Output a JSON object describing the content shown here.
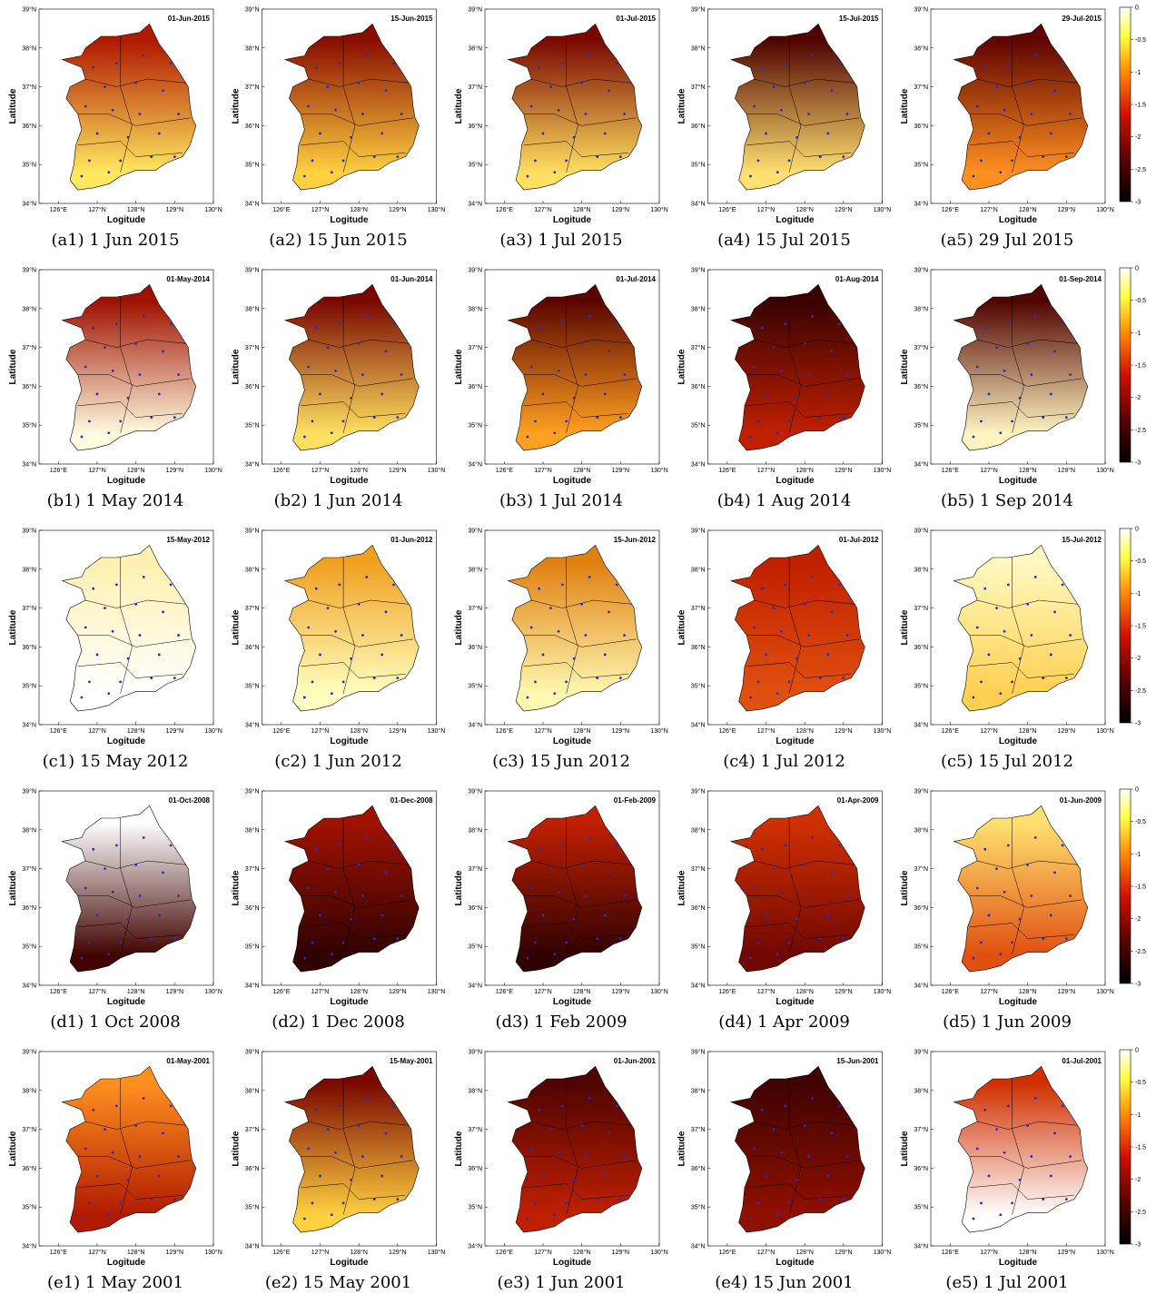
{
  "axes": {
    "ylabel": "Latitude",
    "xlabel": "Logitude",
    "yticks": [
      "39°N",
      "38°N",
      "37°N",
      "36°N",
      "35°N",
      "34°N"
    ],
    "xticks": [
      "126°E",
      "127°N",
      "128°N",
      "129°N",
      "130°N"
    ]
  },
  "colorbar": {
    "ticks": [
      0,
      -0.5,
      -1,
      -1.5,
      -2,
      -2.5,
      -3
    ]
  },
  "rows": [
    {
      "panels": [
        {
          "date": "01-Jun-2015",
          "caption": "(a1) 1 Jun 2015",
          "colors": [
            "#b01a00",
            "#ffe860"
          ]
        },
        {
          "date": "15-Jun-2015",
          "caption": "(a2) 15 Jun 2015",
          "colors": [
            "#8a0e00",
            "#ffd040"
          ]
        },
        {
          "date": "01-Jul-2015",
          "caption": "(a3) 1 Jul 2015",
          "colors": [
            "#7a0800",
            "#ffe060"
          ]
        },
        {
          "date": "15-Jul-2015",
          "caption": "(a4) 15 Jul 2015",
          "colors": [
            "#500400",
            "#ffe070"
          ]
        },
        {
          "date": "29-Jul-2015",
          "caption": "(a5) 29 Jul 2015",
          "colors": [
            "#600500",
            "#ff9020"
          ]
        }
      ]
    },
    {
      "panels": [
        {
          "date": "01-May-2014",
          "caption": "(b1) 1 May 2014",
          "colors": [
            "#a01200",
            "#fffbe0"
          ]
        },
        {
          "date": "01-Jun-2014",
          "caption": "(b2) 1 Jun 2014",
          "colors": [
            "#7a0800",
            "#ffe060"
          ]
        },
        {
          "date": "01-Jul-2014",
          "caption": "(b3) 1 Jul 2014",
          "colors": [
            "#5a0500",
            "#ffa020"
          ]
        },
        {
          "date": "01-Aug-2014",
          "caption": "(b4) 1 Aug 2014",
          "colors": [
            "#3a0200",
            "#c02000"
          ]
        },
        {
          "date": "01-Sep-2014",
          "caption": "(b5) 1 Sep 2014",
          "colors": [
            "#500400",
            "#fff4c0"
          ]
        }
      ]
    },
    {
      "panels": [
        {
          "date": "15-May-2012",
          "caption": "(c1) 15 May 2012",
          "colors": [
            "#fff0b0",
            "#ffffff"
          ]
        },
        {
          "date": "01-Jun-2012",
          "caption": "(c2) 1 Jun 2012",
          "colors": [
            "#f0a020",
            "#ffffc0"
          ]
        },
        {
          "date": "15-Jun-2012",
          "caption": "(c3) 15 Jun 2012",
          "colors": [
            "#e08010",
            "#fff8b0"
          ]
        },
        {
          "date": "01-Jul-2012",
          "caption": "(c4) 1 Jul 2012",
          "colors": [
            "#c02000",
            "#e05010"
          ]
        },
        {
          "date": "15-Jul-2012",
          "caption": "(c5) 15 Jul 2012",
          "colors": [
            "#fff8c0",
            "#ffd050"
          ]
        }
      ]
    },
    {
      "panels": [
        {
          "date": "01-Oct-2008",
          "caption": "(d1) 1 Oct 2008",
          "colors": [
            "#ffffff",
            "#400300"
          ]
        },
        {
          "date": "01-Dec-2008",
          "caption": "(d2) 1 Dec 2008",
          "colors": [
            "#a01200",
            "#300200"
          ]
        },
        {
          "date": "01-Feb-2009",
          "caption": "(d3) 1 Feb 2009",
          "colors": [
            "#c02000",
            "#300200"
          ]
        },
        {
          "date": "01-Apr-2009",
          "caption": "(d4) 1 Apr 2009",
          "colors": [
            "#d03000",
            "#700800"
          ]
        },
        {
          "date": "01-Jun-2009",
          "caption": "(d5) 1 Jun 2009",
          "colors": [
            "#ffe070",
            "#e05010"
          ]
        }
      ]
    },
    {
      "panels": [
        {
          "date": "01-May-2001",
          "caption": "(e1) 1 May 2001",
          "colors": [
            "#ff9020",
            "#b01a00"
          ]
        },
        {
          "date": "15-May-2001",
          "caption": "(e2) 15 May 2001",
          "colors": [
            "#7a0800",
            "#ffd040"
          ]
        },
        {
          "date": "01-Jun-2001",
          "caption": "(e3) 1 Jun 2001",
          "colors": [
            "#500400",
            "#c02000"
          ]
        },
        {
          "date": "15-Jun-2001",
          "caption": "(e4) 15 Jun 2001",
          "colors": [
            "#400300",
            "#901000"
          ]
        },
        {
          "date": "01-Jul-2001",
          "caption": "(e5) 1 Jul 2001",
          "colors": [
            "#d03000",
            "#ffffff"
          ]
        }
      ]
    }
  ]
}
